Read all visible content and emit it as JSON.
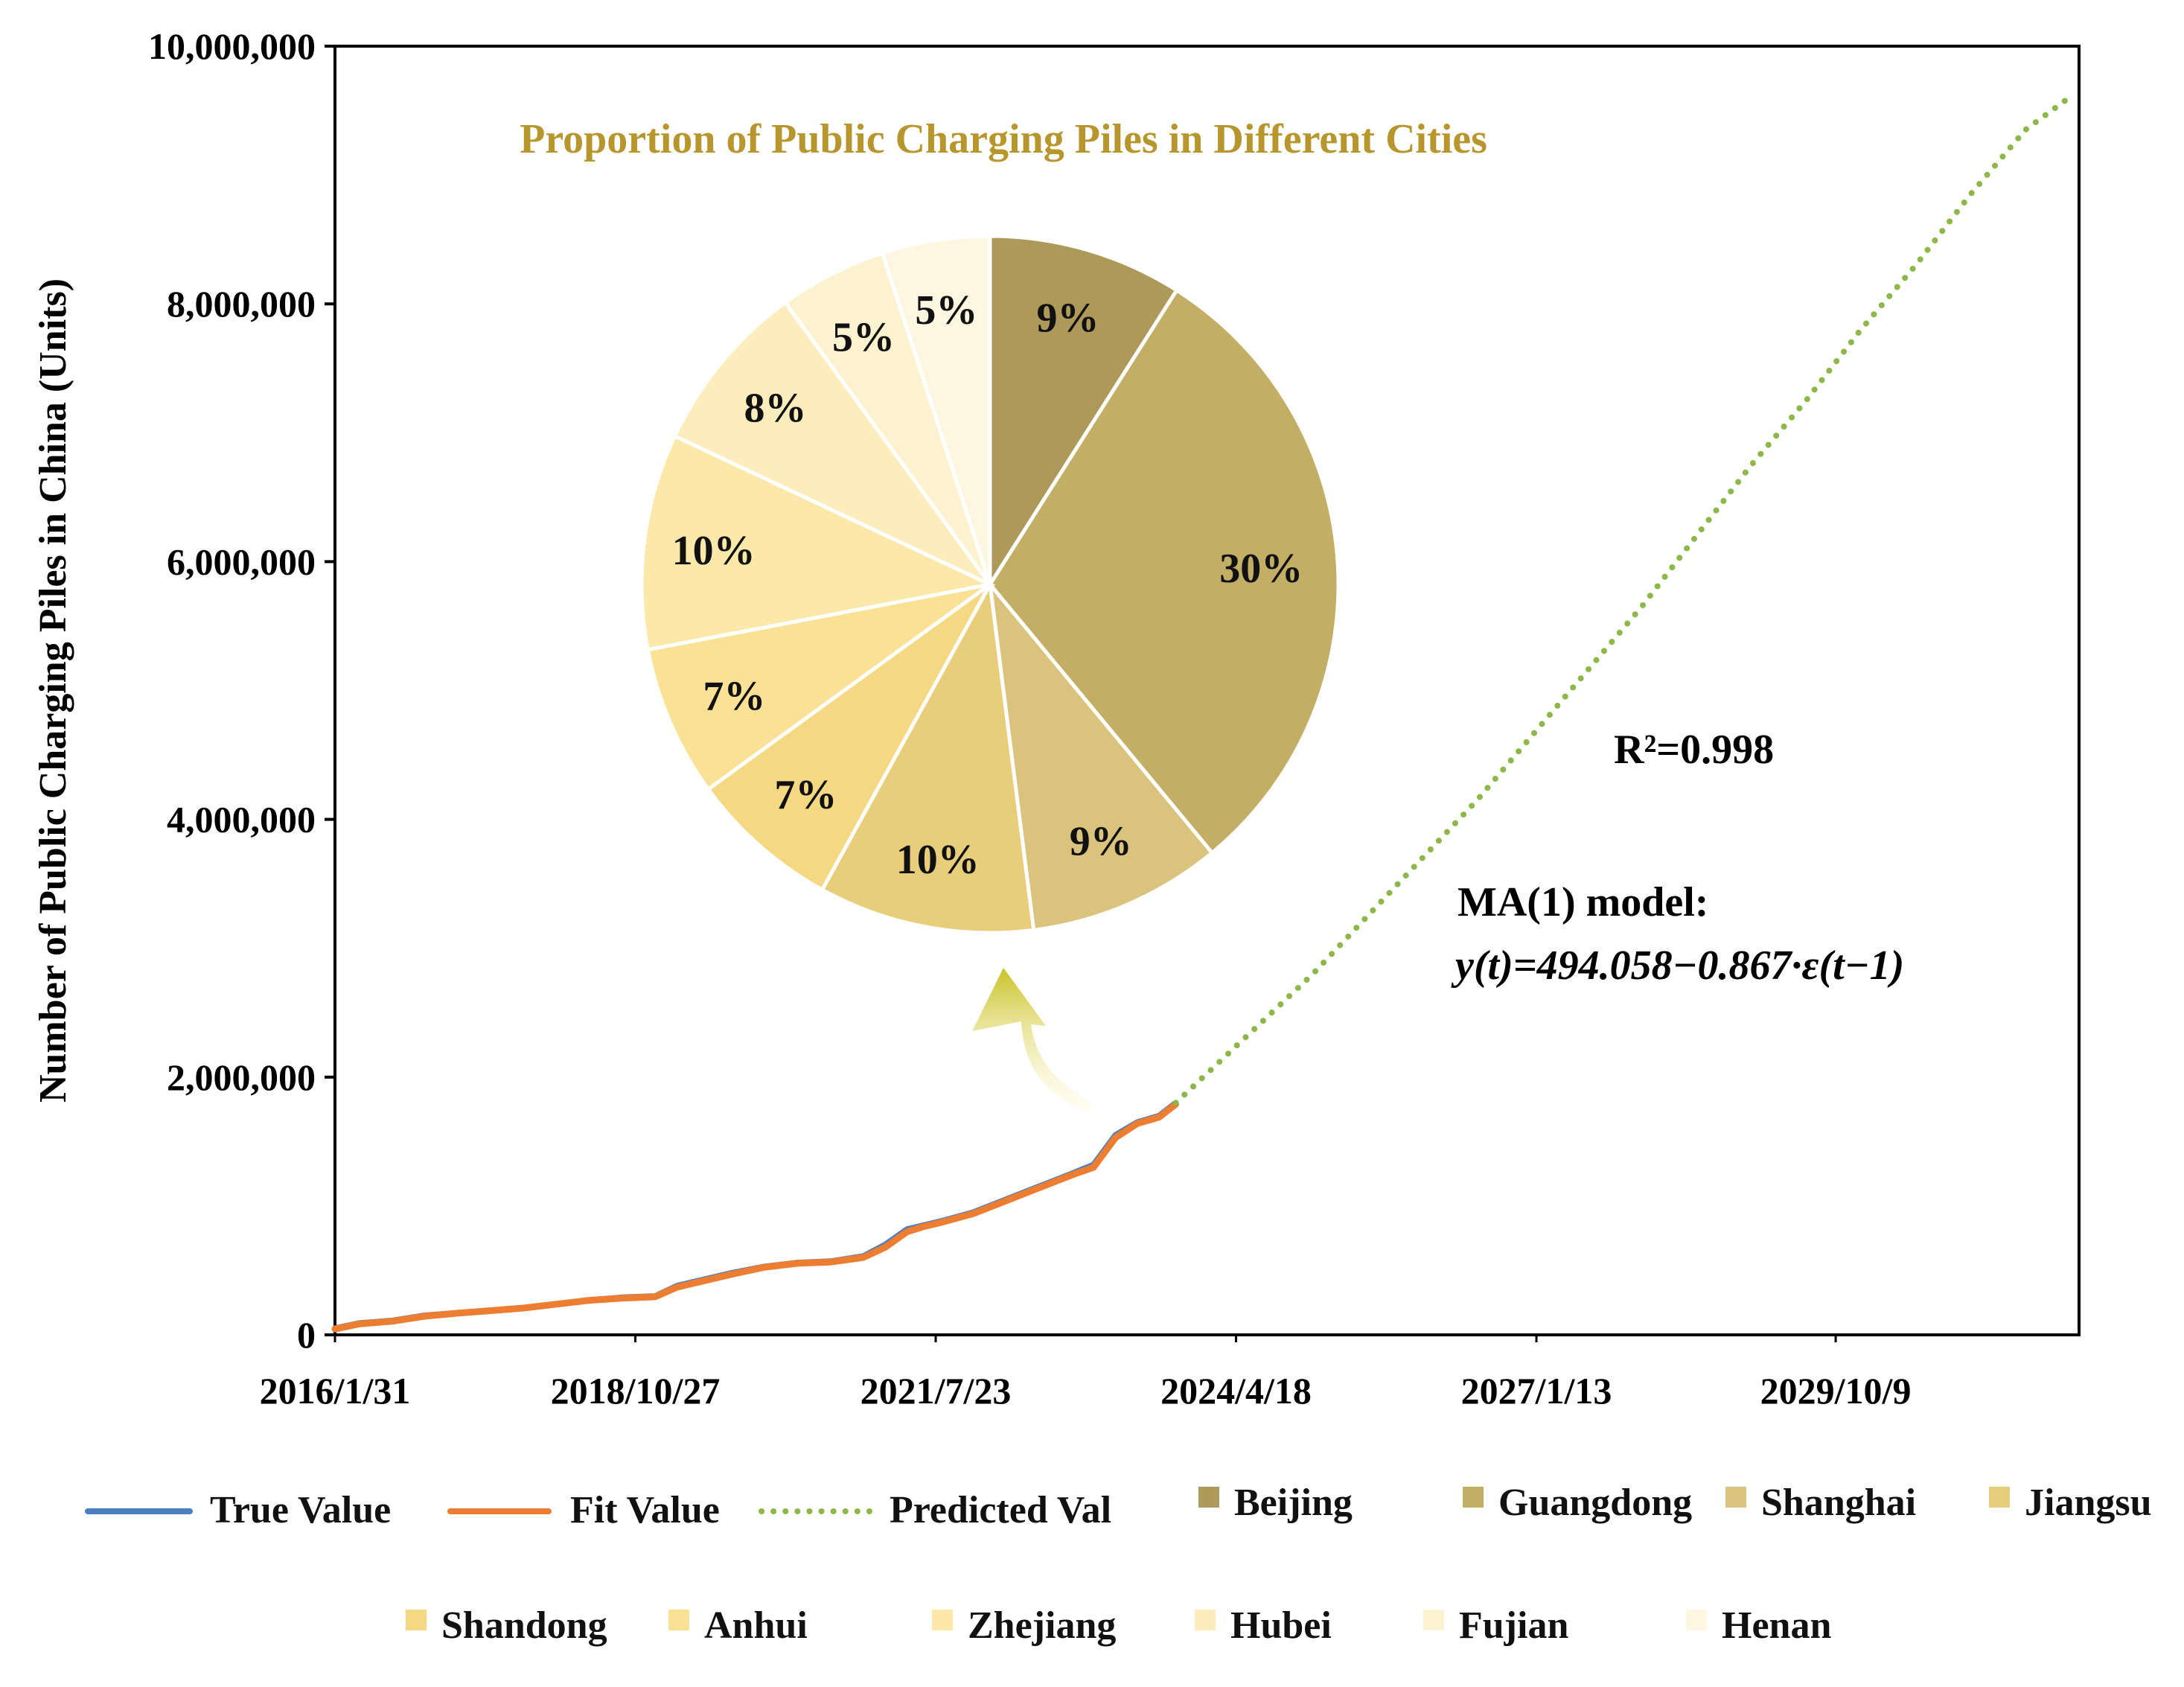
{
  "chart_data": [
    {
      "type": "line",
      "title": "",
      "xlabel": "",
      "ylabel": "Number of Public Charging Piles in China (Units)",
      "ylim": [
        0,
        10000000
      ],
      "yticks": [
        0,
        2000000,
        4000000,
        6000000,
        8000000,
        10000000
      ],
      "ytick_labels": [
        "0",
        "2,000,000",
        "4,000,000",
        "6,000,000",
        "8,000,000",
        "10,000,000"
      ],
      "xlim": [
        "2016/1/31",
        "2031/12/31"
      ],
      "xtick_labels": [
        "2016/1/31",
        "2018/10/27",
        "2021/7/23",
        "2024/4/18",
        "2027/1/13",
        "2029/10/9"
      ],
      "xtick_positions": [
        2016.08,
        2018.82,
        2021.56,
        2024.3,
        2027.04,
        2029.77
      ],
      "series": [
        {
          "name": "True Value",
          "color": "#4A7FC1",
          "style": "solid",
          "x": [
            2016.08,
            2016.3,
            2016.6,
            2016.9,
            2017.2,
            2017.5,
            2017.8,
            2018.1,
            2018.4,
            2018.7,
            2019.0,
            2019.2,
            2019.4,
            2019.7,
            2020.0,
            2020.3,
            2020.6,
            2020.9,
            2021.1,
            2021.3,
            2021.45,
            2021.6,
            2021.9,
            2022.2,
            2022.5,
            2022.8,
            2023.0,
            2023.2,
            2023.4,
            2023.6,
            2023.75
          ],
          "values": [
            50000,
            90000,
            110000,
            150000,
            170000,
            190000,
            210000,
            240000,
            270000,
            290000,
            300000,
            380000,
            420000,
            480000,
            530000,
            560000,
            570000,
            610000,
            700000,
            820000,
            850000,
            880000,
            950000,
            1050000,
            1150000,
            1250000,
            1320000,
            1550000,
            1650000,
            1700000,
            1800000
          ]
        },
        {
          "name": "Fit Value",
          "color": "#ED7D31",
          "style": "solid",
          "x": [
            2016.08,
            2016.3,
            2016.6,
            2016.9,
            2017.2,
            2017.5,
            2017.8,
            2018.1,
            2018.4,
            2018.7,
            2019.0,
            2019.2,
            2019.4,
            2019.7,
            2020.0,
            2020.3,
            2020.6,
            2020.9,
            2021.1,
            2021.3,
            2021.45,
            2021.6,
            2021.9,
            2022.2,
            2022.5,
            2022.8,
            2023.0,
            2023.2,
            2023.4,
            2023.6,
            2023.75
          ],
          "values": [
            45000,
            85000,
            105000,
            145000,
            168000,
            188000,
            208000,
            238000,
            268000,
            285000,
            295000,
            370000,
            410000,
            470000,
            525000,
            555000,
            565000,
            600000,
            680000,
            800000,
            840000,
            870000,
            940000,
            1040000,
            1140000,
            1240000,
            1300000,
            1530000,
            1640000,
            1690000,
            1790000
          ]
        },
        {
          "name": "Predicted Val",
          "color": "#8DB849",
          "style": "dotted",
          "x": [
            2023.75,
            2024.5,
            2025.0,
            2025.5,
            2026.0,
            2026.5,
            2027.0,
            2027.5,
            2028.0,
            2028.5,
            2029.0,
            2029.5,
            2030.0,
            2030.5,
            2031.0,
            2031.5,
            2031.9
          ],
          "values": [
            1800000,
            2400000,
            2800000,
            3250000,
            3700000,
            4150000,
            4650000,
            5150000,
            5650000,
            6200000,
            6750000,
            7250000,
            7800000,
            8300000,
            8850000,
            9350000,
            9600000
          ]
        }
      ],
      "annotations": [
        "R²=0.998",
        "MA(1) model:",
        "y(t)=494.058−0.867·ε(t−1)"
      ]
    },
    {
      "type": "pie",
      "title": "Proportion of Public Charging Piles in Different Cities",
      "categories": [
        "Beijing",
        "Guangdong",
        "Shanghai",
        "Jiangsu",
        "Shandong",
        "Anhui",
        "Zhejiang",
        "Hubei",
        "Fujian",
        "Henan"
      ],
      "values": [
        9,
        30,
        9,
        10,
        7,
        7,
        10,
        8,
        5,
        5
      ],
      "labels": [
        "9%",
        "30%",
        "9%",
        "10%",
        "7%",
        "7%",
        "10%",
        "8%",
        "5%",
        "5%"
      ],
      "colors": [
        "#AD9959",
        "#C3AE66",
        "#D9C37D",
        "#E8CE7A",
        "#F5D882",
        "#FAE196",
        "#FCE8A8",
        "#FDEDBD",
        "#FDF2CF",
        "#FEF6E0"
      ]
    }
  ]
}
